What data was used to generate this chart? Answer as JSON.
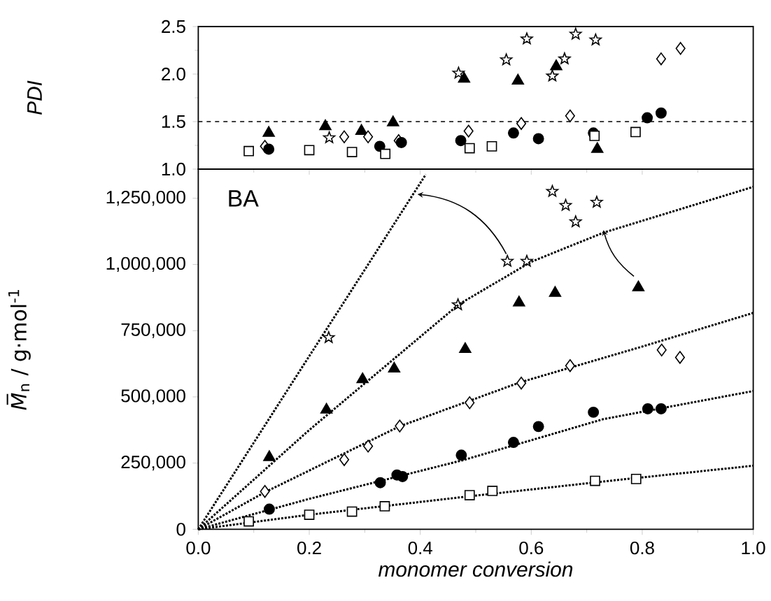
{
  "chart_data": [
    {
      "type": "scatter",
      "ylabel": "PDI",
      "xlim": [
        0,
        1
      ],
      "xticks": [
        0,
        0.2,
        0.4,
        0.6,
        0.8,
        1.0
      ],
      "ylim": [
        1.0,
        2.5
      ],
      "yticks": [
        {
          "value": 1.0,
          "label": "1.0"
        },
        {
          "value": 1.5,
          "label": "1.5"
        },
        {
          "value": 2.0,
          "label": "2.0"
        },
        {
          "value": 2.5,
          "label": "2.5"
        }
      ],
      "tick_labels": "y",
      "ref_lines": [
        {
          "axis": "y",
          "value": 1.5,
          "color": "#000000",
          "line_style": "dashed"
        }
      ],
      "series": [
        {
          "marker": "star",
          "color": "#000000",
          "x": [
            0.236,
            0.469,
            0.555,
            0.592,
            0.638,
            0.66,
            0.68,
            0.716
          ],
          "values": [
            1.33,
            2.01,
            2.15,
            2.37,
            1.98,
            2.16,
            2.42,
            2.36
          ]
        },
        {
          "marker": "triangle",
          "color": "#000000",
          "x": [
            0.127,
            0.229,
            0.294,
            0.351,
            0.479,
            0.576,
            0.645,
            0.719
          ],
          "values": [
            1.38,
            1.45,
            1.4,
            1.49,
            1.95,
            1.93,
            2.08,
            1.21
          ]
        },
        {
          "marker": "diamond",
          "color": "#000000",
          "x": [
            0.12,
            0.263,
            0.306,
            0.361,
            0.487,
            0.582,
            0.67,
            0.834,
            0.869
          ],
          "values": [
            1.24,
            1.34,
            1.34,
            1.3,
            1.4,
            1.48,
            1.56,
            2.16,
            2.27
          ]
        },
        {
          "marker": "circle",
          "color": "#000000",
          "x": [
            0.127,
            0.327,
            0.366,
            0.473,
            0.568,
            0.613,
            0.712,
            0.809,
            0.834
          ],
          "values": [
            1.21,
            1.24,
            1.28,
            1.3,
            1.38,
            1.32,
            1.38,
            1.54,
            1.59
          ]
        },
        {
          "marker": "square",
          "color": "#000000",
          "x": [
            0.091,
            0.2,
            0.277,
            0.337,
            0.489,
            0.529,
            0.714,
            0.788
          ],
          "values": [
            1.19,
            1.2,
            1.18,
            1.16,
            1.22,
            1.24,
            1.35,
            1.39
          ]
        }
      ]
    },
    {
      "type": "scatter",
      "xlabel": "monomer conversion",
      "ylabel": "*M̅*$_{n}$ / g·mol$^{-1}$",
      "annotations": [
        "BA"
      ],
      "xlim": [
        0,
        1
      ],
      "xticks": [
        {
          "value": 0,
          "label": "0.0"
        },
        {
          "value": 0.2,
          "label": "0.2"
        },
        {
          "value": 0.4,
          "label": "0.4"
        },
        {
          "value": 0.6,
          "label": "0.6"
        },
        {
          "value": 0.8,
          "label": "0.8"
        },
        {
          "value": 1.0,
          "label": "1.0"
        }
      ],
      "ylim": [
        0,
        1360000
      ],
      "yticks": [
        0,
        {
          "value": 250000,
          "label": "250,000"
        },
        {
          "value": 500000,
          "label": "500,000"
        },
        {
          "value": 750000,
          "label": "750,000"
        },
        {
          "value": 1000000,
          "label": "1,000,000"
        },
        {
          "value": 1250000,
          "label": "1,250,000"
        }
      ],
      "series": [
        {
          "marker": "star",
          "color": "#000000",
          "x": [
            0.235,
            0.468,
            0.557,
            0.592,
            0.638,
            0.662,
            0.68,
            0.718
          ],
          "values": [
            724000,
            848000,
            1012000,
            1012000,
            1276000,
            1223000,
            1161000,
            1235000
          ]
        },
        {
          "marker": "triangle",
          "color": "#000000",
          "x": [
            0.128,
            0.231,
            0.296,
            0.353,
            0.481,
            0.578,
            0.643,
            0.793
          ],
          "values": [
            272000,
            451000,
            566000,
            606000,
            680000,
            856000,
            892000,
            913000
          ]
        },
        {
          "marker": "diamond",
          "color": "#000000",
          "x": [
            0.12,
            0.263,
            0.306,
            0.363,
            0.489,
            0.582,
            0.67,
            0.835,
            0.868
          ],
          "values": [
            143000,
            263000,
            314000,
            390000,
            478000,
            552000,
            618000,
            677000,
            649000
          ]
        },
        {
          "marker": "circle",
          "color": "#000000",
          "x": [
            0.128,
            0.328,
            0.358,
            0.368,
            0.474,
            0.568,
            0.613,
            0.712,
            0.81,
            0.834
          ],
          "values": [
            76000,
            176000,
            205000,
            199000,
            280000,
            328000,
            388000,
            442000,
            455000,
            455000
          ]
        },
        {
          "marker": "square",
          "color": "#000000",
          "x": [
            0.091,
            0.2,
            0.277,
            0.336,
            0.489,
            0.53,
            0.715,
            0.789
          ],
          "values": [
            30000,
            55000,
            67000,
            87000,
            129000,
            145000,
            183000,
            190000
          ]
        },
        {
          "type": "line",
          "line_style": "dotted",
          "color": "#000000",
          "x": [
            0,
            0.1,
            0.2,
            0.3,
            0.41
          ],
          "values": [
            0,
            327000,
            654000,
            980000,
            1340000
          ]
        },
        {
          "type": "line",
          "line_style": "dotted",
          "color": "#000000",
          "x": [
            0,
            0.2,
            0.47,
            0.6,
            0.73,
            1.0
          ],
          "values": [
            0,
            375000,
            850000,
            1010000,
            1120000,
            1293000
          ]
        },
        {
          "type": "line",
          "line_style": "dotted",
          "color": "#000000",
          "x": [
            0,
            0.12,
            0.363,
            0.58,
            0.8,
            1.0
          ],
          "values": [
            0,
            140000,
            389000,
            555000,
            690000,
            817000
          ]
        },
        {
          "type": "line",
          "line_style": "dotted",
          "color": "#000000",
          "x": [
            0,
            0.2,
            0.477,
            0.73,
            1.0
          ],
          "values": [
            0,
            115000,
            261000,
            416000,
            522000
          ]
        },
        {
          "type": "line",
          "line_style": "dotted",
          "color": "#000000",
          "x": [
            0,
            0.2,
            0.49,
            0.75,
            1.0
          ],
          "values": [
            0,
            55000,
            125000,
            185000,
            240000
          ]
        }
      ]
    }
  ]
}
